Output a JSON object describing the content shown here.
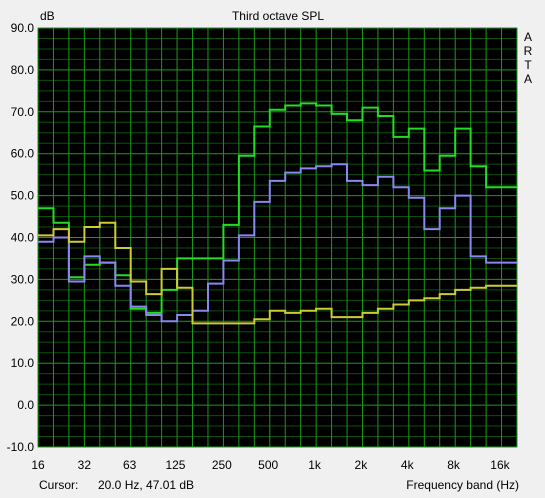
{
  "chart_data": {
    "type": "line",
    "title": "Third octave SPL",
    "ylabel": "dB",
    "xlabel": "Frequency band (Hz)",
    "brand": "ARTA",
    "ylim": [
      -10,
      90
    ],
    "y_ticks": [
      "90.0",
      "80.0",
      "70.0",
      "60.0",
      "50.0",
      "40.0",
      "30.0",
      "20.0",
      "10.0",
      "0.0",
      "-10.0"
    ],
    "x_ticks": [
      "16",
      "32",
      "63",
      "125",
      "250",
      "500",
      "1k",
      "2k",
      "4k",
      "8k",
      "16k"
    ],
    "grid": true,
    "x_bands_hz": [
      16,
      20,
      25,
      31.5,
      40,
      50,
      63,
      80,
      100,
      125,
      160,
      200,
      250,
      315,
      400,
      500,
      630,
      800,
      1000,
      1250,
      1600,
      2000,
      2500,
      3150,
      4000,
      5000,
      6300,
      8000,
      10000,
      12500,
      16000,
      20000
    ],
    "series": [
      {
        "color": "#22dd22",
        "values": [
          47,
          43.5,
          30.5,
          33.5,
          34,
          31,
          23,
          22,
          27.5,
          35,
          35,
          35,
          43,
          59.5,
          66.5,
          70.5,
          71.5,
          72,
          71.5,
          69.5,
          68,
          71,
          69,
          64,
          66,
          56,
          59.5,
          66,
          57,
          52,
          52
        ]
      },
      {
        "color": "#8888ee",
        "values": [
          39,
          40,
          29.5,
          35.5,
          34,
          28.5,
          23.5,
          21.5,
          20,
          21.5,
          22.5,
          29,
          34.5,
          40.5,
          48.5,
          53.5,
          55.5,
          56.5,
          57,
          57.5,
          53.5,
          52.5,
          54.5,
          52,
          49.5,
          42,
          47,
          50,
          35.5,
          34,
          34
        ]
      },
      {
        "color": "#cccc33",
        "values": [
          40.5,
          42,
          39,
          42.5,
          43.5,
          37.5,
          29.5,
          26.5,
          32.5,
          28,
          19.5,
          19.5,
          19.5,
          19.5,
          20.5,
          22.5,
          22,
          22.5,
          23,
          21,
          21,
          22,
          23,
          24,
          25,
          25.5,
          26.5,
          27.5,
          28,
          28.5,
          28.5
        ]
      }
    ]
  },
  "footer": {
    "cursor_label": "Cursor:",
    "cursor_value": "20.0 Hz, 47.01 dB",
    "freq_label": "Frequency band (Hz)"
  }
}
